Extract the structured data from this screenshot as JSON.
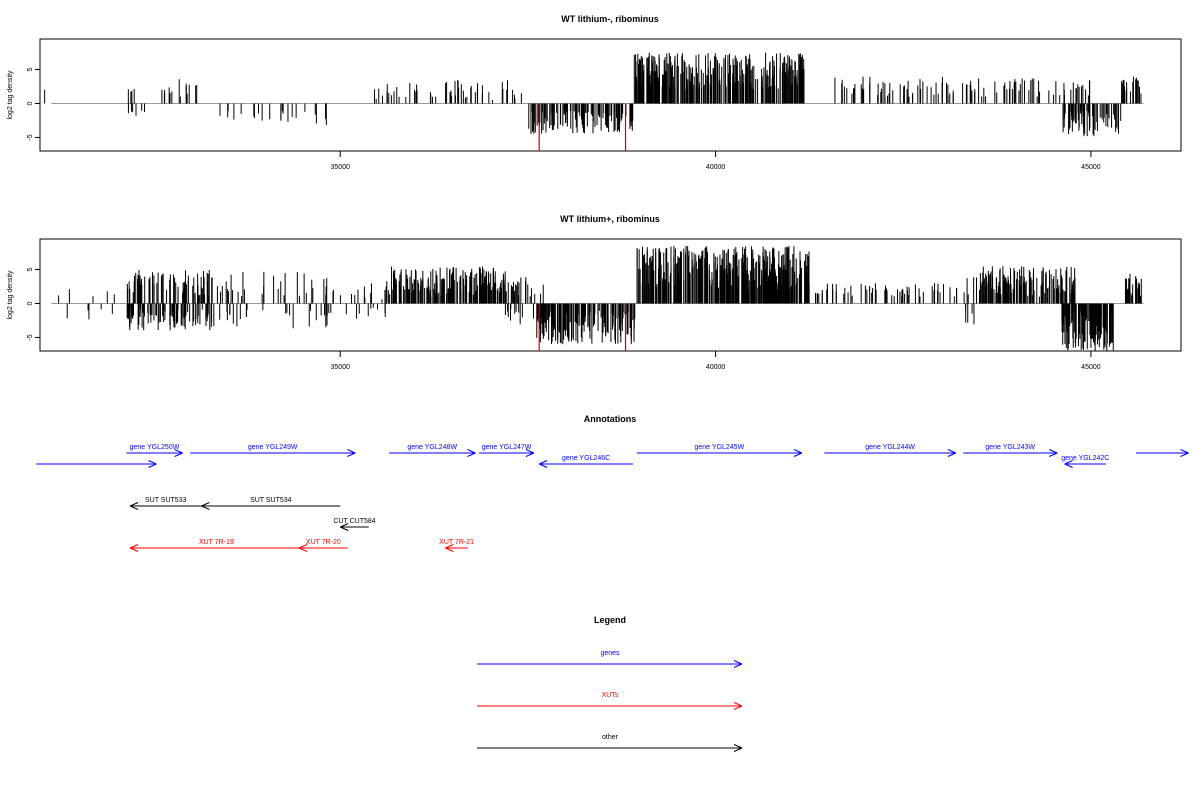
{
  "chart_data": [
    {
      "type": "bar",
      "title": "WT lithium-, ribominus",
      "ylabel": "log2 tag density",
      "xlabel": "",
      "xlim": [
        31000,
        46200
      ],
      "ylim": [
        -7,
        9.5
      ],
      "y_ticks": [
        -5,
        0,
        5
      ],
      "x_ticks": [
        35000,
        40000,
        45000
      ],
      "grid": false,
      "baseline_color": "#999999",
      "bar_color": "#000000",
      "highlight_color": "#cc0000",
      "highlights": [
        {
          "x": 37650,
          "y": -7
        },
        {
          "x": 38800,
          "y": -7
        }
      ],
      "blocks": [
        {
          "x0": 31050,
          "x1": 31100,
          "n": 1,
          "min": 2,
          "max": 2,
          "sign": "pos",
          "seed": 11
        },
        {
          "x0": 32150,
          "x1": 32400,
          "n": 10,
          "min": 1,
          "max": 3,
          "sign": "mixed",
          "seed": 12
        },
        {
          "x0": 32600,
          "x1": 33100,
          "n": 14,
          "min": 1,
          "max": 4,
          "sign": "pos",
          "seed": 13
        },
        {
          "x0": 33100,
          "x1": 35100,
          "n": 22,
          "min": 1,
          "max": 3.5,
          "sign": "neg",
          "seed": 14
        },
        {
          "x0": 35450,
          "x1": 36700,
          "n": 38,
          "min": 0.5,
          "max": 3.5,
          "sign": "pos",
          "seed": 15
        },
        {
          "x0": 36700,
          "x1": 37500,
          "n": 18,
          "min": 0.5,
          "max": 3.5,
          "sign": "pos",
          "seed": 16
        },
        {
          "x0": 37500,
          "x1": 38900,
          "n": 120,
          "min": 1,
          "max": 4.5,
          "sign": "neg",
          "seed": 17
        },
        {
          "x0": 38900,
          "x1": 41200,
          "n": 320,
          "min": 2,
          "max": 7.5,
          "sign": "pos",
          "seed": 18
        },
        {
          "x0": 41550,
          "x1": 44450,
          "n": 90,
          "min": 1,
          "max": 4,
          "sign": "pos",
          "seed": 19
        },
        {
          "x0": 44450,
          "x1": 45000,
          "n": 18,
          "min": 1,
          "max": 3.5,
          "sign": "pos",
          "seed": 20
        },
        {
          "x0": 44600,
          "x1": 45400,
          "n": 70,
          "min": 1,
          "max": 5,
          "sign": "neg",
          "seed": 21
        },
        {
          "x0": 45400,
          "x1": 45680,
          "n": 20,
          "min": 1,
          "max": 4,
          "sign": "pos",
          "seed": 22
        }
      ]
    },
    {
      "type": "bar",
      "title": "WT lithium+, ribominus",
      "ylabel": "log2 tag density",
      "xlabel": "",
      "xlim": [
        31000,
        46200
      ],
      "ylim": [
        -7,
        9.5
      ],
      "y_ticks": [
        -5,
        0,
        5
      ],
      "x_ticks": [
        35000,
        40000,
        45000
      ],
      "grid": false,
      "baseline_color": "#999999",
      "bar_color": "#000000",
      "highlight_color": "#cc0000",
      "highlights": [
        {
          "x": 37650,
          "y": -7
        },
        {
          "x": 38800,
          "y": -7
        }
      ],
      "blocks": [
        {
          "x0": 31000,
          "x1": 32000,
          "n": 10,
          "min": 1,
          "max": 3,
          "sign": "mixed",
          "seed": 31
        },
        {
          "x0": 32150,
          "x1": 33300,
          "n": 160,
          "min": 1,
          "max": 5,
          "sign": "mixed",
          "seed": 32
        },
        {
          "x0": 33300,
          "x1": 35000,
          "n": 60,
          "min": 1,
          "max": 5,
          "sign": "mixed",
          "seed": 33
        },
        {
          "x0": 35000,
          "x1": 35600,
          "n": 20,
          "min": 0.5,
          "max": 3,
          "sign": "mixed",
          "seed": 34
        },
        {
          "x0": 35600,
          "x1": 37200,
          "n": 200,
          "min": 1,
          "max": 5.5,
          "sign": "pos",
          "seed": 35
        },
        {
          "x0": 37200,
          "x1": 37800,
          "n": 40,
          "min": 1,
          "max": 4,
          "sign": "mixed",
          "seed": 36
        },
        {
          "x0": 37600,
          "x1": 38950,
          "n": 160,
          "min": 1,
          "max": 6,
          "sign": "neg",
          "seed": 37
        },
        {
          "x0": 38950,
          "x1": 41250,
          "n": 360,
          "min": 2,
          "max": 8.5,
          "sign": "pos",
          "seed": 38
        },
        {
          "x0": 41300,
          "x1": 43300,
          "n": 60,
          "min": 1,
          "max": 3,
          "sign": "pos",
          "seed": 39
        },
        {
          "x0": 43300,
          "x1": 43500,
          "n": 10,
          "min": 1,
          "max": 4,
          "sign": "mixed",
          "seed": 40
        },
        {
          "x0": 43500,
          "x1": 44800,
          "n": 150,
          "min": 1,
          "max": 5.5,
          "sign": "pos",
          "seed": 41
        },
        {
          "x0": 44600,
          "x1": 45300,
          "n": 120,
          "min": 1,
          "max": 7,
          "sign": "neg",
          "seed": 42
        },
        {
          "x0": 45450,
          "x1": 45690,
          "n": 30,
          "min": 1,
          "max": 4.5,
          "sign": "pos",
          "seed": 43
        }
      ]
    },
    {
      "type": "annotation-track",
      "title": "Annotations",
      "xlim": [
        31000,
        46200
      ],
      "features": [
        {
          "label": "",
          "start": 30950,
          "end": 32550,
          "dir": "+",
          "class": "gene",
          "row": 1
        },
        {
          "label": "gene YGL250W",
          "start": 32150,
          "end": 32900,
          "dir": "+",
          "class": "gene",
          "row": 0
        },
        {
          "label": "gene YGL249W",
          "start": 33000,
          "end": 35200,
          "dir": "+",
          "class": "gene",
          "row": 0
        },
        {
          "label": "gene YGL248W",
          "start": 35650,
          "end": 36800,
          "dir": "+",
          "class": "gene",
          "row": 0
        },
        {
          "label": "gene YGL247W",
          "start": 36850,
          "end": 37580,
          "dir": "+",
          "class": "gene",
          "row": 0
        },
        {
          "label": "gene YGL246C",
          "start": 37650,
          "end": 38900,
          "dir": "-",
          "class": "gene",
          "row": 1
        },
        {
          "label": "gene YGL245W",
          "start": 38950,
          "end": 41150,
          "dir": "+",
          "class": "gene",
          "row": 0
        },
        {
          "label": "gene YGL244W",
          "start": 41450,
          "end": 43200,
          "dir": "+",
          "class": "gene",
          "row": 0
        },
        {
          "label": "gene YGL243W",
          "start": 43300,
          "end": 44550,
          "dir": "+",
          "class": "gene",
          "row": 0
        },
        {
          "label": "gene YGL242C",
          "start": 44650,
          "end": 45200,
          "dir": "-",
          "class": "gene",
          "row": 1
        },
        {
          "label": "",
          "start": 45600,
          "end": 46300,
          "dir": "+",
          "class": "gene",
          "row": 0
        },
        {
          "label": "SUT SUT533",
          "start": 32200,
          "end": 33150,
          "dir": "-",
          "class": "other",
          "row": 2
        },
        {
          "label": "SUT SUT534",
          "start": 33150,
          "end": 35000,
          "dir": "-",
          "class": "other",
          "row": 2
        },
        {
          "label": "CUT CUT584",
          "start": 35000,
          "end": 35380,
          "dir": "-",
          "class": "other",
          "row": 3
        },
        {
          "label": "XUT 7R-19",
          "start": 32200,
          "end": 34500,
          "dir": "-",
          "class": "xut",
          "row": 4
        },
        {
          "label": "XUT 7R-20",
          "start": 34450,
          "end": 35100,
          "dir": "-",
          "class": "xut",
          "row": 4
        },
        {
          "label": "XUT 7R-21",
          "start": 36400,
          "end": 36700,
          "dir": "-",
          "class": "xut",
          "row": 4
        }
      ],
      "colors": {
        "gene": "#0000ff",
        "xut": "#ff0000",
        "other": "#000000"
      }
    },
    {
      "type": "legend",
      "title": "Legend",
      "entries": [
        {
          "label": "genes",
          "color": "#0000ff"
        },
        {
          "label": "XUTs",
          "color": "#ff0000"
        },
        {
          "label": "other",
          "color": "#000000"
        }
      ]
    }
  ]
}
